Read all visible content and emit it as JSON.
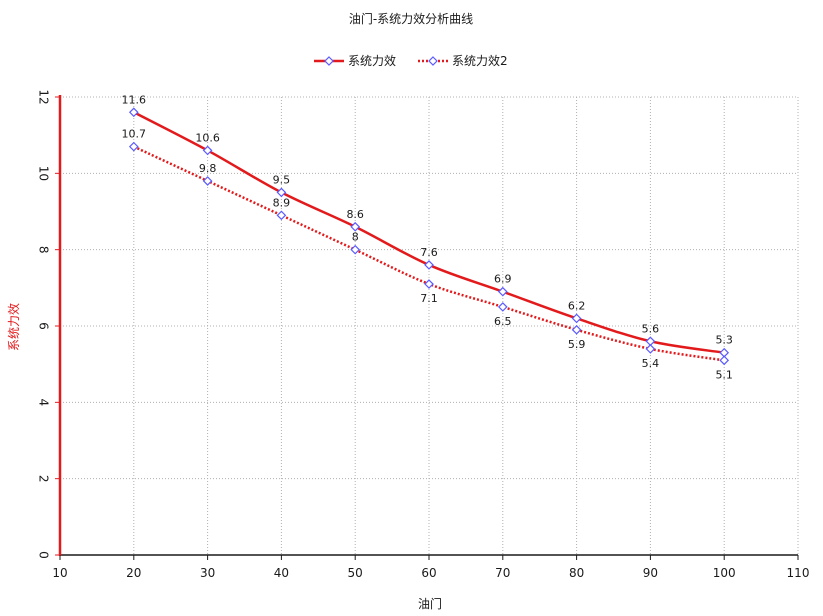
{
  "chart_data": {
    "type": "line",
    "title": "油门-系统力效分析曲线",
    "xlabel": "油门",
    "ylabel": "系统力效",
    "xlim": [
      10,
      110
    ],
    "ylim": [
      0,
      12
    ],
    "x_ticks": [
      10,
      20,
      30,
      40,
      50,
      60,
      70,
      80,
      90,
      100,
      110
    ],
    "y_ticks": [
      0,
      2,
      4,
      6,
      8,
      10,
      12
    ],
    "x": [
      20,
      30,
      40,
      50,
      60,
      70,
      80,
      90,
      100
    ],
    "series": [
      {
        "name": "系统力效",
        "values": [
          11.6,
          10.6,
          9.5,
          8.6,
          7.6,
          6.9,
          6.2,
          5.6,
          5.3
        ],
        "labels": [
          "11.6",
          "10.6",
          "9.5",
          "8.6",
          "7.6",
          "6.9",
          "6.2",
          "5.6",
          "5.3"
        ],
        "color": "#e31a1c",
        "line_style": "solid",
        "marker": "diamond"
      },
      {
        "name": "系统力效2",
        "values": [
          10.7,
          9.8,
          8.9,
          8.0,
          7.1,
          6.5,
          5.9,
          5.4,
          5.1
        ],
        "labels": [
          "10.7",
          "9.8",
          "8.9",
          "8",
          "7.1",
          "6.5",
          "5.9",
          "5.4",
          "5.1"
        ],
        "color": "#e31a1c",
        "line_style": "dotted",
        "marker": "diamond"
      }
    ],
    "grid": true,
    "legend_position": "top-center",
    "colors": {
      "series": "#e31a1c",
      "marker_stroke": "#5b5bff",
      "marker_fill": "#ffffff",
      "y_axis": "#e31a1c",
      "y_axis_title": "#e31a1c",
      "x_axis": "#1a1a1a",
      "grid": "#b0b0b0"
    }
  }
}
